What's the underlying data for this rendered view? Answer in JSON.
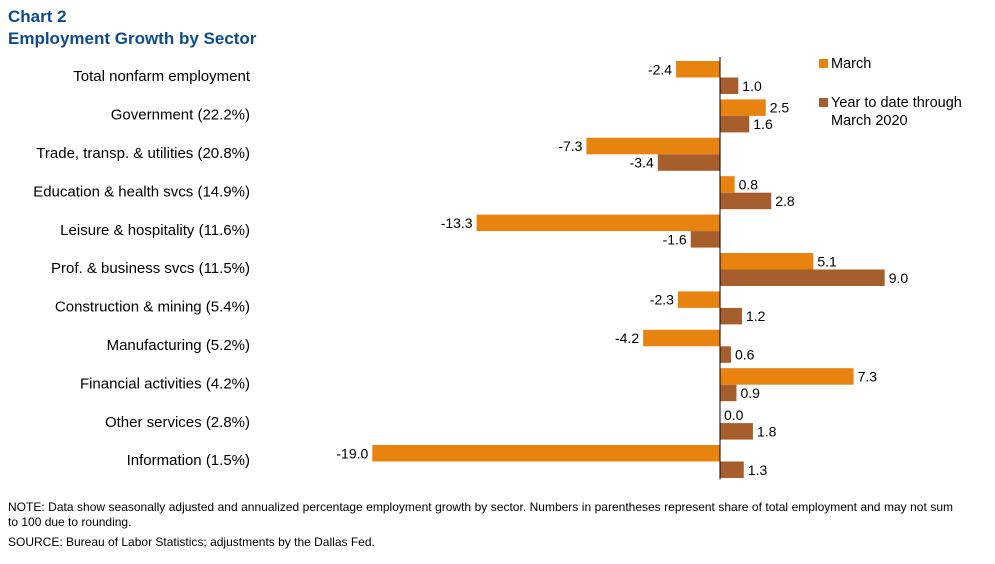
{
  "header": {
    "chart_number": "Chart 2",
    "title": "Employment Growth by Sector"
  },
  "colors": {
    "title": "#0d4c8b",
    "march": "#e8830f",
    "ytd": "#a65f2c",
    "axis": "#000000"
  },
  "chart_data": {
    "type": "bar",
    "orientation": "horizontal",
    "categories": [
      "Total nonfarm employment",
      "Government (22.2%)",
      "Trade, transp. & utilities (20.8%)",
      "Education & health svcs (14.9%)",
      "Leisure & hospitality (11.6%)",
      "Prof. & business svcs (11.5%)",
      "Construction & mining (5.4%)",
      "Manufacturing (5.2%)",
      "Financial activities (4.2%)",
      "Other services (2.8%)",
      "Information (1.5%)"
    ],
    "series": [
      {
        "name": "March",
        "values": [
          -2.4,
          2.5,
          -7.3,
          0.8,
          -13.3,
          5.1,
          -2.3,
          -4.2,
          7.3,
          0.0,
          -19.0
        ],
        "labels": [
          "-2.4",
          "2.5",
          "-7.3",
          "0.8",
          "-13.3",
          "5.1",
          "-2.3",
          "-4.2",
          "7.3",
          "0.0",
          "-19.0"
        ]
      },
      {
        "name": "Year to date through March 2020",
        "legend_lines": [
          "Year to date through",
          "March 2020"
        ],
        "values": [
          1.0,
          1.6,
          -3.4,
          2.8,
          -1.6,
          9.0,
          1.2,
          0.6,
          0.9,
          1.8,
          1.3
        ],
        "labels": [
          "1.0",
          "1.6",
          "-3.4",
          "2.8",
          "-1.6",
          "9.0",
          "1.2",
          "0.6",
          "0.9",
          "1.8",
          "1.3"
        ]
      }
    ],
    "xlim": [
      -19.0,
      9.0
    ],
    "legend_position": "top-right",
    "grid": false
  },
  "footer": {
    "note": "NOTE: Data show seasonally adjusted and annualized percentage employment growth by sector. Numbers in parentheses represent share of total employment and may not sum to 100 due to rounding.",
    "source": "SOURCE: Bureau of Labor Statistics; adjustments by the Dallas Fed."
  }
}
